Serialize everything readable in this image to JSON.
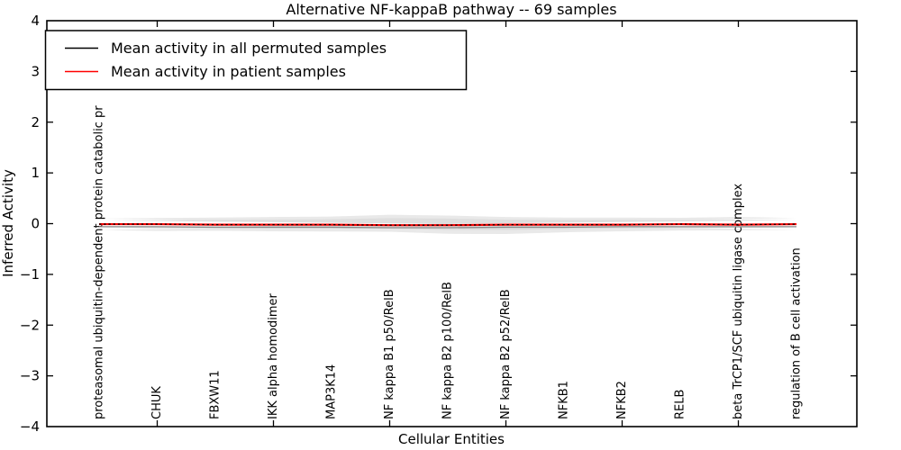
{
  "title": "Alternative NF-kappaB pathway -- 69 samples",
  "legend": {
    "position": "upper left",
    "items": [
      {
        "label": "Mean activity in all permuted samples",
        "color": "#000000"
      },
      {
        "label": "Mean activity in patient samples",
        "color": "#ff0000"
      }
    ]
  },
  "colors": {
    "band_outer": "#e9e9e9",
    "band_inner": "#dedede",
    "permuted_line": "#8a8a8a",
    "patient_line": "#ff0000",
    "dash_overlay": "#000000",
    "frame": "#000000"
  },
  "chart_data": {
    "type": "line",
    "title": "Alternative NF-kappaB pathway -- 69 samples",
    "xlabel": "Cellular Entities",
    "ylabel": "Inferred Activity",
    "ylim": [
      -4,
      4
    ],
    "yticks": [
      4,
      3,
      2,
      1,
      0,
      -1,
      -2,
      -3,
      -4
    ],
    "grid": false,
    "legend_position": "upper left",
    "categories": [
      "proteasomal ubiquitin-dependent protein catabolic pr",
      "CHUK",
      "FBXW11",
      "IKK alpha homodimer",
      "MAP3K14",
      "NF kappa B1 p50/RelB",
      "NF kappa B2 p100/RelB",
      "NF kappa B2 p52/RelB",
      "NFKB1",
      "NFKB2",
      "RELB",
      "beta TrCP1/SCF ubiquitin ligase complex",
      "regulation of B cell activation"
    ],
    "series": [
      {
        "name": "Mean activity in all permuted samples",
        "color": "#000000",
        "values": [
          -0.06,
          -0.06,
          -0.07,
          -0.07,
          -0.07,
          -0.08,
          -0.08,
          -0.07,
          -0.07,
          -0.06,
          -0.06,
          -0.06,
          -0.06
        ]
      },
      {
        "name": "Mean activity in patient samples",
        "color": "#ff0000",
        "values": [
          -0.01,
          -0.01,
          -0.02,
          -0.02,
          -0.02,
          -0.03,
          -0.03,
          -0.02,
          -0.02,
          -0.02,
          -0.01,
          -0.02,
          -0.01
        ]
      }
    ],
    "band": {
      "name": "permuted samples activity range",
      "color": "#e9e9e9",
      "upper": [
        0.1,
        0.11,
        0.12,
        0.13,
        0.14,
        0.175,
        0.16,
        0.13,
        0.12,
        0.12,
        0.115,
        0.13,
        0.11
      ],
      "lower": [
        -0.12,
        -0.13,
        -0.135,
        -0.15,
        -0.17,
        -0.205,
        -0.2,
        -0.16,
        -0.155,
        -0.15,
        -0.14,
        -0.145,
        -0.125
      ]
    }
  }
}
